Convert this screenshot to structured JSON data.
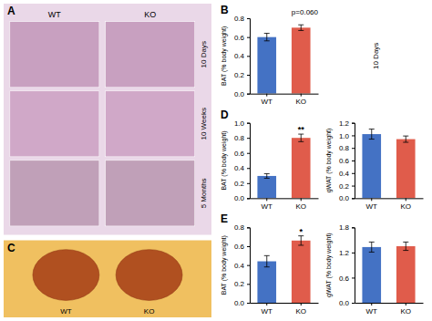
{
  "chart_data": [
    {
      "type": "image",
      "title": "A",
      "annotations": [
        "WT",
        "KO",
        "10 Days",
        "10 Weeks",
        "5 Months"
      ]
    },
    {
      "type": "image",
      "title": "C",
      "annotations": [
        "WT",
        "KO"
      ]
    },
    {
      "type": "bar",
      "title": "B",
      "subtitle": "10 Days",
      "categories": [
        "WT",
        "KO"
      ],
      "values": [
        0.6,
        0.7
      ],
      "errors": [
        0.04,
        0.03
      ],
      "colors": [
        "#4472C4",
        "#E05C4B"
      ],
      "ylabel": "BAT (% body weight)",
      "ylim": [
        0,
        0.8
      ],
      "yticks": [
        {
          "value": 0.0,
          "label": "0.0"
        },
        0.2,
        0.4,
        0.6,
        0.8
      ],
      "annotation": "p=0.060"
    },
    {
      "type": "bar",
      "title": "D",
      "categories": [
        "WT",
        "KO"
      ],
      "values": [
        0.295,
        0.8
      ],
      "errors": [
        0.03,
        0.05
      ],
      "colors": [
        "#4472C4",
        "#E05C4B"
      ],
      "ylabel": "BAT (% body weight)",
      "ylim": [
        0,
        1.0
      ],
      "yticks": [
        {
          "value": 0.0,
          "label": "0.0"
        },
        0.2,
        0.4,
        0.6,
        0.8,
        {
          "value": 1.0,
          "label": "1.0"
        }
      ],
      "annotation": "**"
    },
    {
      "type": "bar",
      "categories": [
        "WT",
        "KO"
      ],
      "values": [
        1.02,
        0.94
      ],
      "errors": [
        0.08,
        0.05
      ],
      "colors": [
        "#4472C4",
        "#E05C4B"
      ],
      "ylabel": "gWAT (% body weight)",
      "ylim": [
        0,
        1.2
      ],
      "yticks": [
        {
          "value": 0.0,
          "label": "0.0"
        },
        0.2,
        0.4,
        0.6,
        0.8,
        {
          "value": 1.0,
          "label": "1.0"
        },
        1.2
      ]
    },
    {
      "type": "bar",
      "title": "E",
      "categories": [
        "WT",
        "KO"
      ],
      "values": [
        0.44,
        0.66
      ],
      "errors": [
        0.06,
        0.05
      ],
      "colors": [
        "#4472C4",
        "#E05C4B"
      ],
      "ylabel": "BAT (% body weight)",
      "ylim": [
        0,
        0.8
      ],
      "yticks": [
        {
          "value": 0.0,
          "label": "0.0"
        },
        0.2,
        0.4,
        0.6,
        0.8
      ],
      "annotation": "*"
    },
    {
      "type": "bar",
      "categories": [
        "WT",
        "KO"
      ],
      "values": [
        1.33,
        1.35
      ],
      "errors": [
        0.12,
        0.1
      ],
      "colors": [
        "#4472C4",
        "#E05C4B"
      ],
      "ylabel": "gWAT (% body weight)",
      "ylim": [
        0,
        1.8
      ],
      "yticks": [
        {
          "value": 0.0,
          "label": "0.0"
        },
        0.6,
        1.2,
        1.8
      ]
    }
  ]
}
